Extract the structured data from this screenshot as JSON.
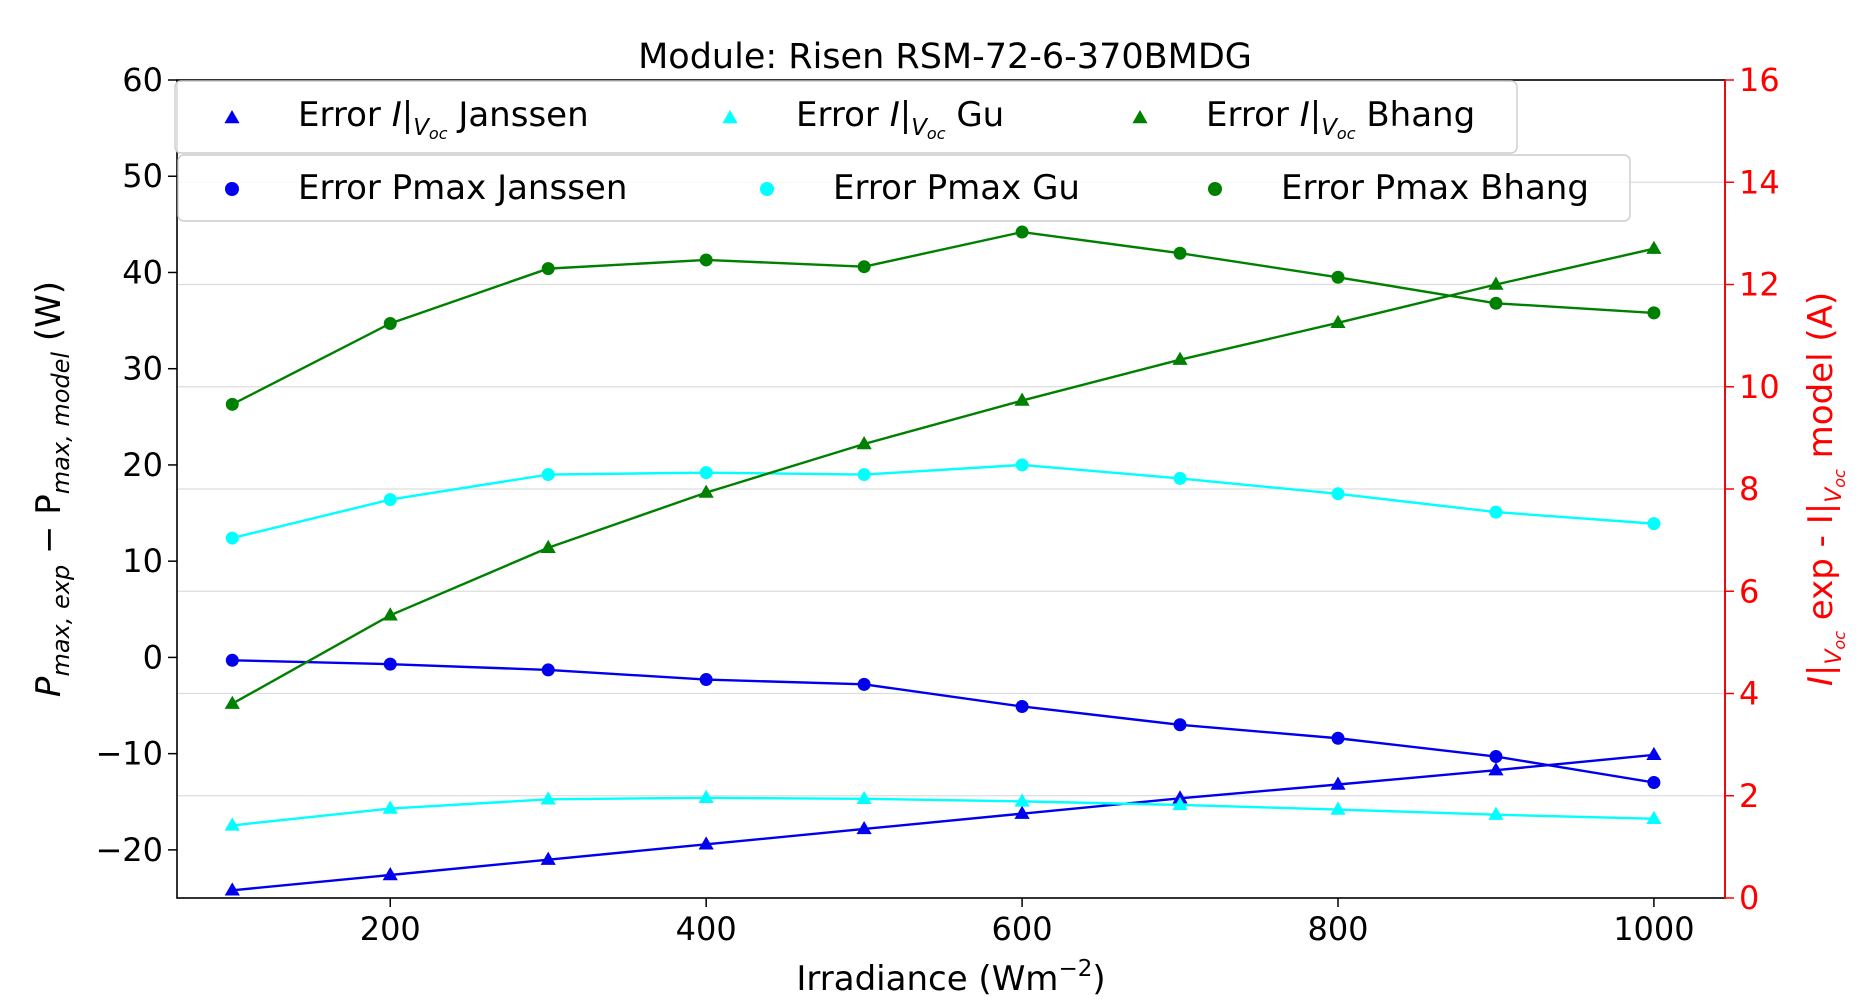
{
  "chart_data": {
    "type": "line",
    "title": "Module: Risen RSM-72-6-370BMDG",
    "xlabel": "Irradiance (Wm",
    "xlabel_sup": "−2",
    "xlabel_end": ")",
    "ylabel_left": {
      "p1": "P",
      "s1": "max, exp",
      "mid": " − P",
      "s2": "max, model",
      "end": " (W)"
    },
    "ylabel_right": {
      "p1": "I|",
      "s1": "V",
      "s1b": "oc",
      "mid": " exp - I|",
      "s2": "V",
      "s2b": "oc",
      "end": " model (A)"
    },
    "xlim": [
      65,
      1045
    ],
    "ylim_left": [
      -25,
      60
    ],
    "ylim_right": [
      0,
      16
    ],
    "x_ticks": [
      200,
      400,
      600,
      800,
      1000
    ],
    "y_ticks_left": [
      -20,
      -10,
      0,
      10,
      20,
      30,
      40,
      50,
      60
    ],
    "y_ticks_right": [
      0,
      2,
      4,
      6,
      8,
      10,
      12,
      14,
      16
    ],
    "grid": "horizontal lines at right-axis ticks",
    "legend_placement": "top",
    "x": [
      100,
      200,
      300,
      400,
      500,
      600,
      700,
      800,
      900,
      1000
    ],
    "colors": {
      "Janssen": "#0000ee",
      "Gu": "#00ffff",
      "Bhang": "#008000",
      "right_axis": "#ff0000"
    },
    "series": [
      {
        "name": "Error Pmax Janssen",
        "axis": "left",
        "marker": "circle",
        "color_key": "Janssen",
        "values": [
          -0.3,
          -0.7,
          -1.3,
          -2.3,
          -2.8,
          -5.1,
          -7.0,
          -8.4,
          -10.3,
          -13.0
        ]
      },
      {
        "name": "Error Pmax Gu",
        "axis": "left",
        "marker": "circle",
        "color_key": "Gu",
        "values": [
          12.4,
          16.4,
          19.0,
          19.2,
          19.0,
          20.0,
          18.6,
          17.0,
          15.1,
          13.9
        ]
      },
      {
        "name": "Error Pmax Bhang",
        "axis": "left",
        "marker": "circle",
        "color_key": "Bhang",
        "values": [
          26.3,
          34.7,
          40.4,
          41.3,
          40.6,
          44.2,
          42.0,
          39.5,
          36.8,
          35.8
        ]
      },
      {
        "name": "Janssen",
        "axis": "right",
        "marker": "triangle",
        "color_key": "Janssen",
        "values": [
          0.15,
          0.45,
          0.75,
          1.05,
          1.35,
          1.65,
          1.95,
          2.22,
          2.5,
          2.8
        ]
      },
      {
        "name": "Gu",
        "axis": "right",
        "marker": "triangle",
        "color_key": "Gu",
        "values": [
          1.42,
          1.75,
          1.93,
          1.96,
          1.94,
          1.89,
          1.82,
          1.73,
          1.63,
          1.55
        ]
      },
      {
        "name": "Bhang",
        "axis": "right",
        "marker": "triangle",
        "color_key": "Bhang",
        "values": [
          3.8,
          5.53,
          6.85,
          7.93,
          8.88,
          9.73,
          10.53,
          11.25,
          12.0,
          12.7
        ]
      }
    ],
    "legend_rows": [
      [
        {
          "series": 3,
          "prefix": "Error ",
          "italic": "I",
          "bar": "|",
          "sub": "V",
          "subsub": "oc",
          "suffix": " Janssen"
        },
        {
          "series": 4,
          "prefix": "Error ",
          "italic": "I",
          "bar": "|",
          "sub": "V",
          "subsub": "oc",
          "suffix": " Gu"
        },
        {
          "series": 5,
          "prefix": "Error ",
          "italic": "I",
          "bar": "|",
          "sub": "V",
          "subsub": "oc",
          "suffix": " Bhang"
        }
      ],
      [
        {
          "series": 0,
          "label": "Error Pmax Janssen"
        },
        {
          "series": 1,
          "label": "Error Pmax Gu"
        },
        {
          "series": 2,
          "label": "Error Pmax Bhang"
        }
      ]
    ]
  }
}
